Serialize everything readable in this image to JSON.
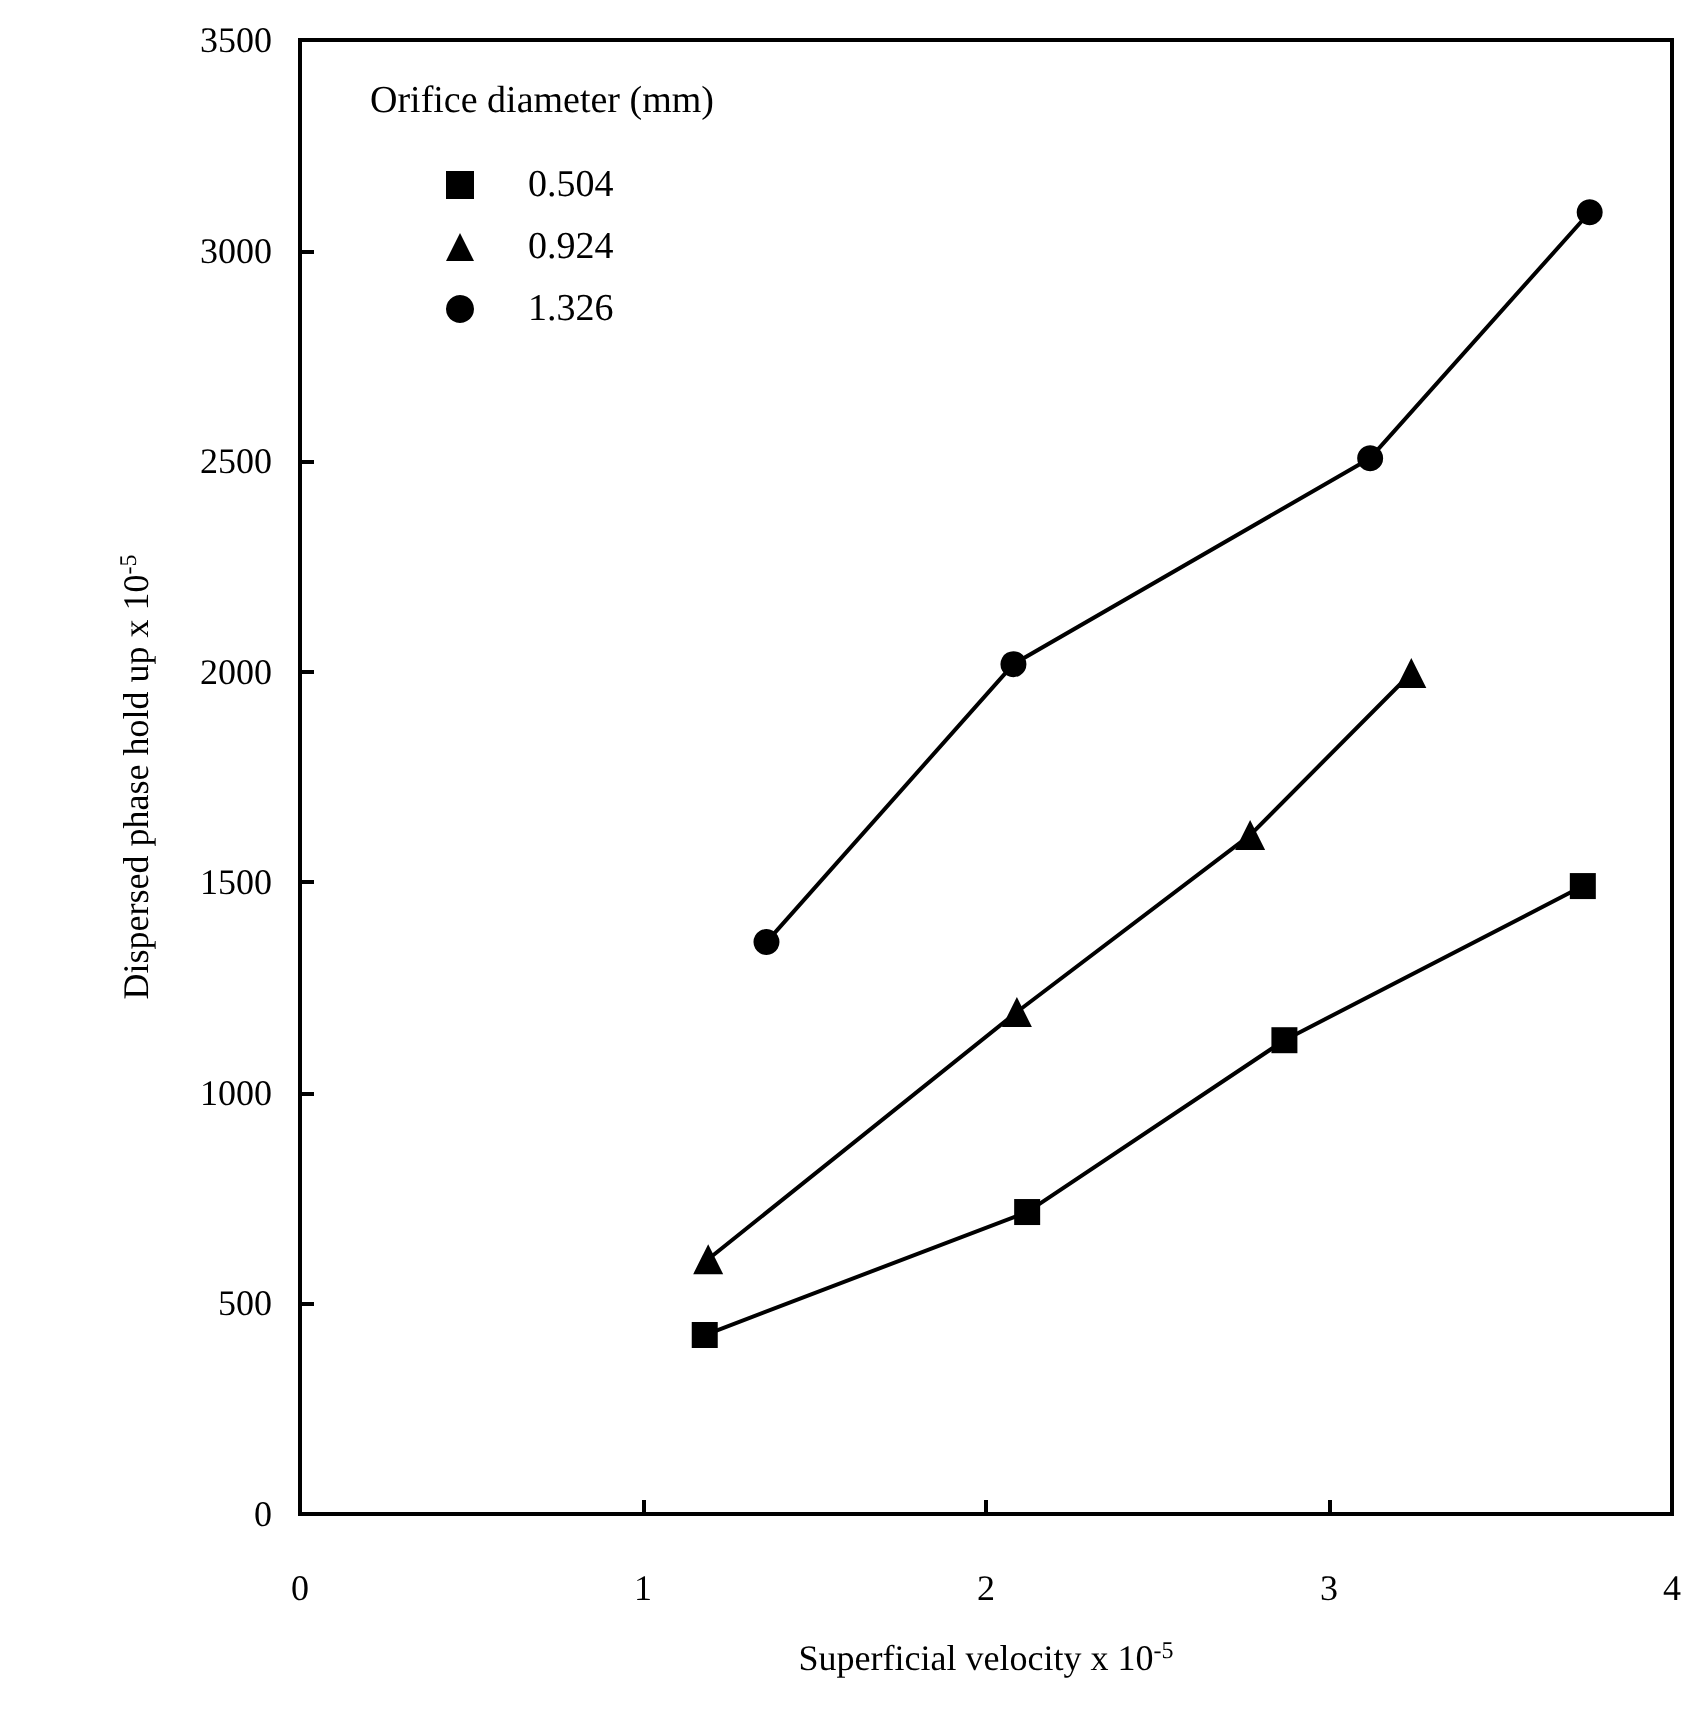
{
  "chart_data": {
    "type": "line",
    "xlabel": "Superficial velocity x 10$^{-5}$",
    "ylabel": "Dispersed phase hold up x 10$^{-5}$",
    "legend_title": "Orifice diameter (mm)",
    "xlim": [
      0,
      4
    ],
    "xticks": [
      0,
      1,
      2,
      3,
      4
    ],
    "ylim": [
      0,
      3500
    ],
    "yticks": [
      0,
      500,
      1000,
      1500,
      2000,
      2500,
      3000,
      3500
    ],
    "grid": false,
    "legend": "top left",
    "series": [
      {
        "name": "0.504",
        "color": "#000000",
        "marker": "square",
        "x": [
          1.18,
          2.12,
          2.87,
          3.74
        ],
        "values": [
          425,
          717,
          1125,
          1491
        ]
      },
      {
        "name": "0.924",
        "color": "#000000",
        "marker": "triangle",
        "x": [
          1.19,
          2.09,
          2.77,
          3.24
        ],
        "values": [
          605,
          1192,
          1612,
          1997
        ]
      },
      {
        "name": "1.326",
        "color": "#000000",
        "marker": "circle",
        "x": [
          1.36,
          2.08,
          3.12,
          3.76
        ],
        "values": [
          1358,
          2018,
          2507,
          3091
        ]
      }
    ]
  }
}
